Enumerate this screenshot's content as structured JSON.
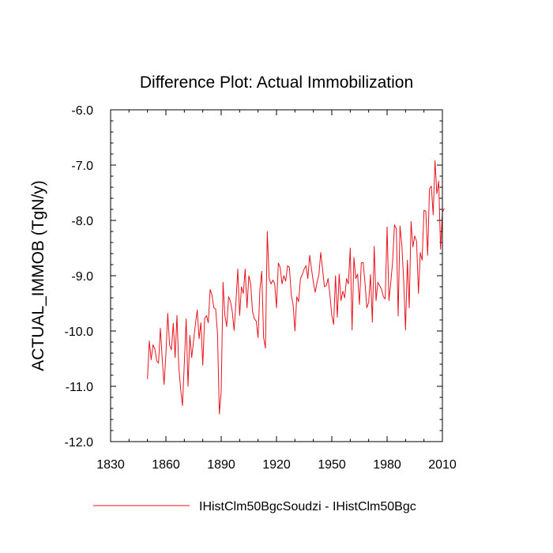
{
  "chart_data": {
    "type": "line",
    "title": "Difference Plot: Actual Immobilization",
    "xlabel": "",
    "ylabel": "ACTUAL_IMMOB  (TgN/y)",
    "xlim": [
      1830,
      2010
    ],
    "ylim": [
      -12.0,
      -6.0
    ],
    "x_ticks": [
      1830,
      1860,
      1890,
      1920,
      1950,
      1980,
      2010
    ],
    "x_tick_labels": [
      "1830",
      "1860",
      "1890",
      "1920",
      "1950",
      "1980",
      "2010"
    ],
    "y_ticks": [
      -12.0,
      -11.0,
      -10.0,
      -9.0,
      -8.0,
      -7.0,
      -6.0
    ],
    "y_tick_labels": [
      "-12.0",
      "-11.0",
      "-10.0",
      "-9.0",
      "-8.0",
      "-7.0",
      "-6.0"
    ],
    "grid": false,
    "legend_position": "bottom",
    "series": [
      {
        "name": "IHistClm50BgcSoudzi - IHistClm50Bgc",
        "color": "#e8141d",
        "x_start": 1850,
        "x_step": 1,
        "values": [
          -10.87,
          -10.18,
          -10.52,
          -10.25,
          -10.32,
          -10.54,
          -10.58,
          -9.95,
          -10.5,
          -10.97,
          -10.42,
          -9.68,
          -10.25,
          -10.34,
          -9.86,
          -10.48,
          -9.72,
          -10.65,
          -11.05,
          -11.35,
          -10.58,
          -9.78,
          -11.0,
          -10.08,
          -10.48,
          -10.18,
          -9.88,
          -9.62,
          -10.14,
          -9.85,
          -10.62,
          -9.78,
          -9.72,
          -9.85,
          -9.25,
          -9.35,
          -9.58,
          -9.6,
          -10.05,
          -11.5,
          -11.1,
          -9.12,
          -9.72,
          -9.92,
          -9.38,
          -9.46,
          -9.65,
          -9.99,
          -9.48,
          -8.88,
          -9.72,
          -9.2,
          -9.32,
          -8.88,
          -9.58,
          -9.0,
          -9.15,
          -9.65,
          -9.78,
          -9.82,
          -10.12,
          -9.25,
          -8.92,
          -10.12,
          -10.31,
          -8.2,
          -9.05,
          -9.15,
          -9.08,
          -9.14,
          -9.58,
          -8.77,
          -8.85,
          -9.15,
          -9.0,
          -9.1,
          -8.82,
          -8.85,
          -9.35,
          -9.52,
          -10.0,
          -9.38,
          -9.47,
          -9.05,
          -8.98,
          -8.88,
          -8.82,
          -9.05,
          -8.63,
          -8.88,
          -9.12,
          -9.3,
          -9.12,
          -8.98,
          -8.58,
          -8.88,
          -9.2,
          -9.18,
          -9.05,
          -9.35,
          -9.72,
          -9.88,
          -9.0,
          -9.75,
          -8.97,
          -9.45,
          -9.28,
          -9.4,
          -9.05,
          -9.15,
          -8.5,
          -9.98,
          -8.67,
          -9.05,
          -8.97,
          -9.52,
          -8.77,
          -8.76,
          -9.12,
          -9.58,
          -9.48,
          -8.98,
          -9.84,
          -8.47,
          -9.45,
          -9.12,
          -9.18,
          -9.25,
          -9.38,
          -9.42,
          -8.12,
          -9.45,
          -9.12,
          -8.75,
          -8.08,
          -8.15,
          -9.73,
          -8.1,
          -8.45,
          -9.1,
          -9.98,
          -8.72,
          -9.58,
          -8.02,
          -8.48,
          -8.28,
          -8.38,
          -9.32,
          -8.58,
          -8.72,
          -7.82,
          -7.83,
          -8.63,
          -7.43,
          -7.38,
          -7.9,
          -6.92,
          -7.52,
          -7.29,
          -8.52,
          -7.85,
          -7.78
        ]
      }
    ]
  }
}
